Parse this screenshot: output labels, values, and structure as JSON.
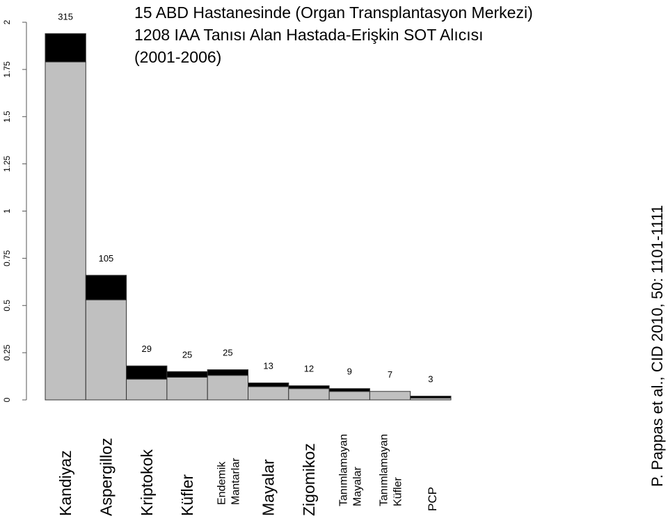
{
  "chart_data": {
    "type": "bar",
    "title": [
      "15 ABD Hastanesinde (Organ Transplantasyon Merkezi)",
      "1208 IAA Tanısı Alan Hastada-Erişkin SOT Alıcısı",
      "(2001-2006)"
    ],
    "source": "P. Pappas et al., CID 2010, 50: 1101-1111",
    "categories": [
      "Kandiyaz",
      "Aspergilloz",
      "Kriptokok",
      "Küfler",
      [
        "Endemik",
        "Mantarlar"
      ],
      "Mayalar",
      "Zigomikoz",
      [
        "Tanımlamayan",
        "Mayalar"
      ],
      [
        "Tanımlamayan",
        "Küfler"
      ],
      "PCP"
    ],
    "counts": [
      315,
      105,
      29,
      25,
      25,
      13,
      12,
      9,
      7,
      3
    ],
    "series": [
      {
        "color": "#c0c0c0",
        "values": [
          1.79,
          0.53,
          0.11,
          0.12,
          0.13,
          0.07,
          0.06,
          0.045,
          0.045,
          0.01
        ]
      },
      {
        "color": "#000000",
        "values": [
          0.15,
          0.13,
          0.07,
          0.03,
          0.03,
          0.02,
          0.015,
          0.015,
          0,
          0.01
        ]
      }
    ],
    "ylim": [
      0,
      2
    ],
    "yticks": [
      0,
      0.25,
      0.5,
      0.75,
      1,
      1.25,
      1.5,
      1.75,
      2
    ]
  }
}
